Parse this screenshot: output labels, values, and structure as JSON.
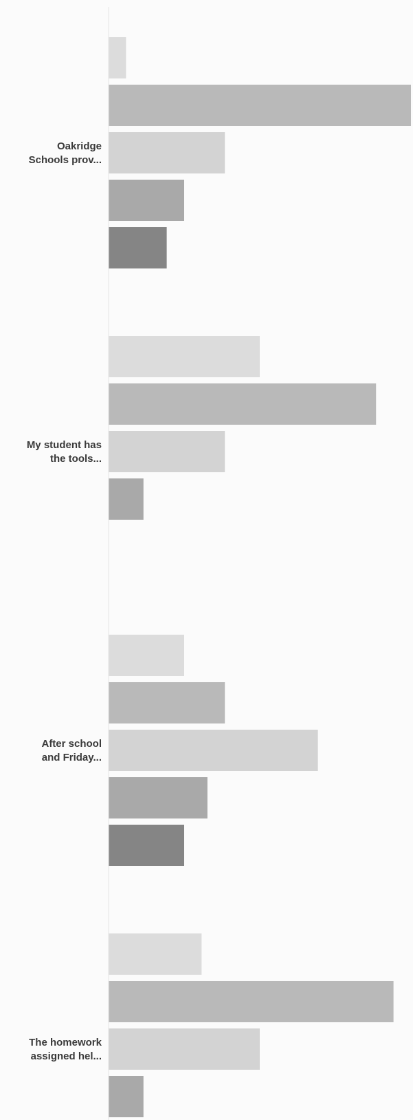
{
  "chart_data": {
    "type": "bar",
    "orientation": "horizontal",
    "title": "",
    "xlabel": "",
    "ylabel": "",
    "categories": [
      "Oakridge Schools prov...",
      "My student has the tools...",
      "After school and Friday...",
      "The homework assigned hel..."
    ],
    "category_label_lines": [
      [
        "Oakridge",
        "Schools prov..."
      ],
      [
        "My student has",
        "the tools..."
      ],
      [
        "After school",
        "and Friday..."
      ],
      [
        "The homework",
        "assigned hel..."
      ]
    ],
    "series_colors": [
      "#dcdcdc",
      "#b9b9b9",
      "#d3d3d3",
      "#a9a9a9",
      "#858585"
    ],
    "values": [
      [
        3,
        52,
        20,
        13,
        10
      ],
      [
        26,
        46,
        20,
        6,
        0
      ],
      [
        13,
        20,
        36,
        17,
        13
      ],
      [
        16,
        49,
        26,
        6,
        0
      ]
    ],
    "xlim": [
      0,
      52
    ],
    "grid": false,
    "legend": "none"
  }
}
